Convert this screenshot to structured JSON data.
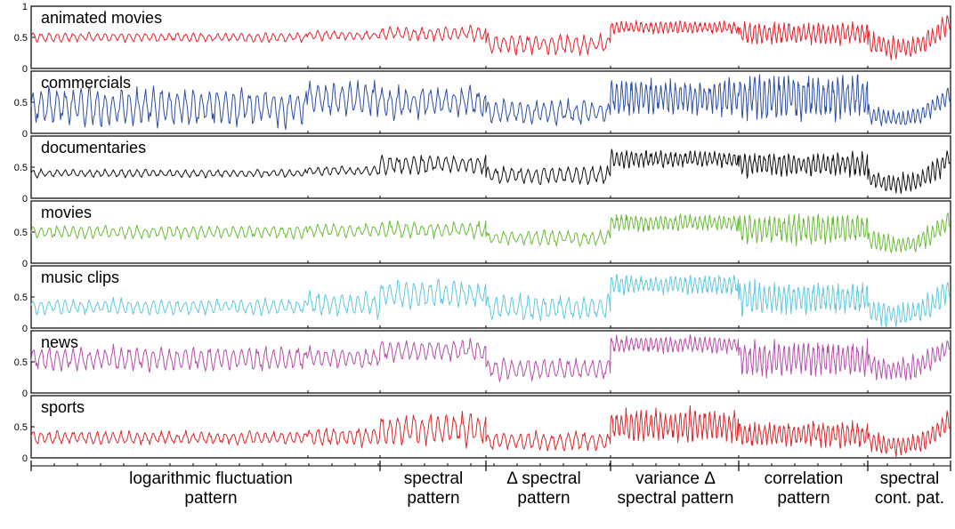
{
  "chart_data": {
    "type": "line",
    "ylim": [
      0,
      1
    ],
    "yticks": [
      "0",
      "0.5",
      "1"
    ],
    "panels": [
      {
        "name": "animated movies",
        "color": "#e8202a",
        "means": [
          0.5,
          0.53,
          0.56,
          0.39,
          0.66,
          0.56,
          0.42,
          0.74
        ],
        "amps": [
          0.07,
          0.07,
          0.11,
          0.16,
          0.09,
          0.16,
          0.17,
          0.2
        ]
      },
      {
        "name": "commercials",
        "color": "#2d4fa3",
        "means": [
          0.42,
          0.55,
          0.5,
          0.34,
          0.58,
          0.58,
          0.32,
          0.72
        ],
        "amps": [
          0.28,
          0.26,
          0.24,
          0.18,
          0.26,
          0.32,
          0.14,
          0.22
        ]
      },
      {
        "name": "documentaries",
        "color": "#111111",
        "means": [
          0.4,
          0.44,
          0.55,
          0.37,
          0.63,
          0.55,
          0.33,
          0.72
        ],
        "amps": [
          0.06,
          0.07,
          0.15,
          0.14,
          0.12,
          0.18,
          0.17,
          0.22
        ]
      },
      {
        "name": "movies",
        "color": "#6bbb3a",
        "means": [
          0.5,
          0.52,
          0.54,
          0.4,
          0.65,
          0.55,
          0.38,
          0.7
        ],
        "amps": [
          0.1,
          0.1,
          0.12,
          0.12,
          0.12,
          0.22,
          0.16,
          0.22
        ]
      },
      {
        "name": "music clips",
        "color": "#5fc9de",
        "means": [
          0.34,
          0.38,
          0.55,
          0.32,
          0.7,
          0.48,
          0.3,
          0.72
        ],
        "amps": [
          0.12,
          0.2,
          0.22,
          0.2,
          0.14,
          0.24,
          0.2,
          0.22
        ]
      },
      {
        "name": "news",
        "color": "#b54fa9",
        "means": [
          0.55,
          0.56,
          0.68,
          0.38,
          0.78,
          0.55,
          0.46,
          0.75
        ],
        "amps": [
          0.18,
          0.16,
          0.16,
          0.16,
          0.12,
          0.26,
          0.18,
          0.22
        ]
      },
      {
        "name": "sports",
        "color": "#d8282c",
        "means": [
          0.32,
          0.34,
          0.46,
          0.27,
          0.52,
          0.38,
          0.28,
          0.66
        ],
        "amps": [
          0.1,
          0.14,
          0.24,
          0.14,
          0.24,
          0.18,
          0.16,
          0.22
        ]
      }
    ],
    "x_segments": [
      {
        "label": [
          "logarithmic fluctuation",
          "pattern"
        ]
      },
      {
        "label": [
          "spectral",
          "pattern"
        ]
      },
      {
        "label": [
          "Δ spectral",
          "pattern"
        ]
      },
      {
        "label": [
          "variance Δ",
          "spectral pattern"
        ]
      },
      {
        "label": [
          "correlation",
          "pattern"
        ]
      },
      {
        "label": [
          "spectral",
          "cont. pat."
        ]
      }
    ]
  }
}
